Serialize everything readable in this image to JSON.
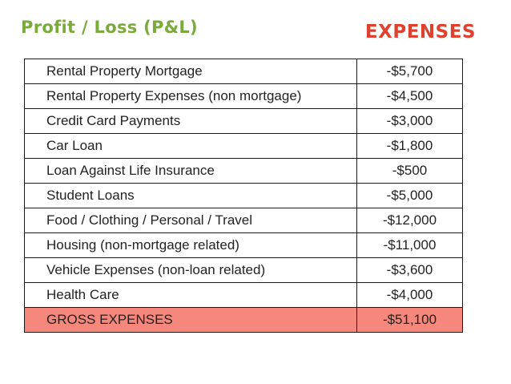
{
  "header": {
    "title": "Profit / Loss (P&L)",
    "section": "EXPENSES"
  },
  "colors": {
    "title": "#7aaa3c",
    "section": "#e0412f",
    "total_row": "#f6877c"
  },
  "table": {
    "rows": [
      {
        "label": "Rental Property Mortgage",
        "amount": "-$5,700"
      },
      {
        "label": "Rental Property Expenses (non mortgage)",
        "amount": "-$4,500"
      },
      {
        "label": "Credit Card Payments",
        "amount": "-$3,000"
      },
      {
        "label": "Car Loan",
        "amount": "-$1,800"
      },
      {
        "label": "Loan Against Life Insurance",
        "amount": "-$500"
      },
      {
        "label": "Student Loans",
        "amount": "-$5,000"
      },
      {
        "label": "Food / Clothing / Personal / Travel",
        "amount": "-$12,000"
      },
      {
        "label": "Housing (non-mortgage related)",
        "amount": "-$11,000"
      },
      {
        "label": "Vehicle Expenses (non-loan related)",
        "amount": "-$3,600"
      },
      {
        "label": "Health Care",
        "amount": "-$4,000"
      }
    ],
    "total": {
      "label": "GROSS EXPENSES",
      "amount": "-$51,100"
    }
  }
}
